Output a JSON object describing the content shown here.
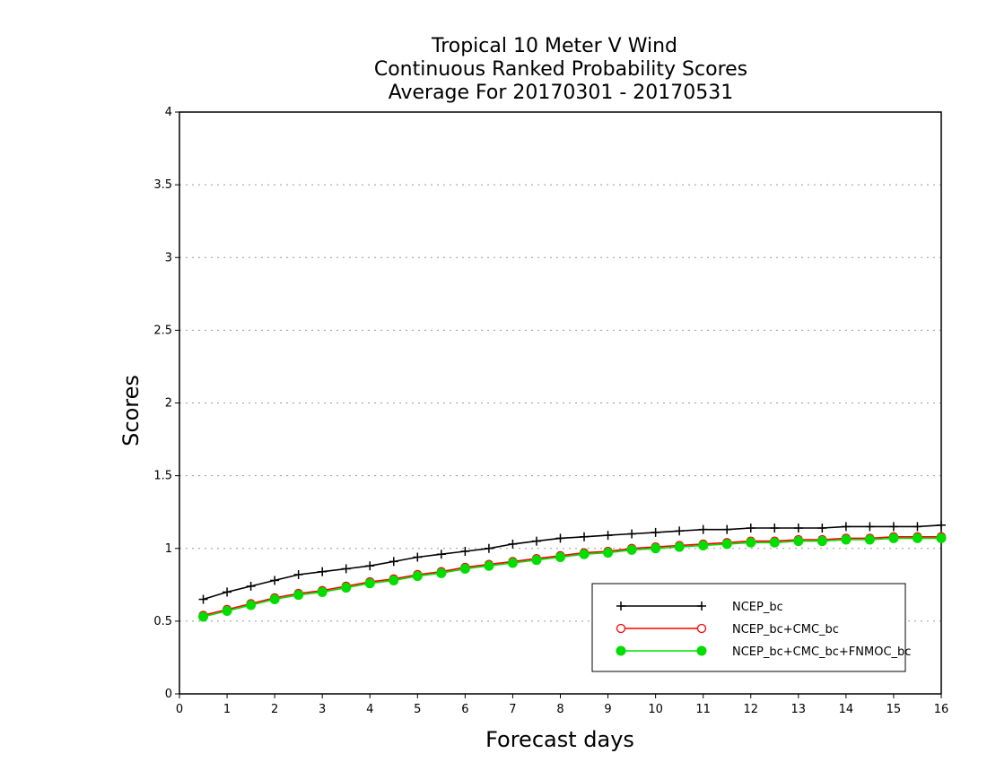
{
  "chart_data": {
    "type": "line",
    "title_lines": [
      "Tropical 10 Meter V Wind",
      "Continuous Ranked Probability Scores",
      "Average For 20170301 - 20170531"
    ],
    "xlabel": "Forecast days",
    "ylabel": "Scores",
    "xlim": [
      0,
      16
    ],
    "ylim": [
      0,
      4
    ],
    "x_ticks": [
      "0",
      "1",
      "2",
      "3",
      "4",
      "5",
      "6",
      "7",
      "8",
      "9",
      "10",
      "11",
      "12",
      "13",
      "14",
      "15",
      "16"
    ],
    "y_ticks": [
      "0",
      "0.5",
      "1",
      "1.5",
      "2",
      "2.5",
      "3",
      "3.5",
      "4"
    ],
    "grid": "horizontal-dotted",
    "legend_position": "bottom-right",
    "x": [
      0.5,
      1,
      1.5,
      2,
      2.5,
      3,
      3.5,
      4,
      4.5,
      5,
      5.5,
      6,
      6.5,
      7,
      7.5,
      8,
      8.5,
      9,
      9.5,
      10,
      10.5,
      11,
      11.5,
      12,
      12.5,
      13,
      13.5,
      14,
      14.5,
      15,
      15.5,
      16
    ],
    "series": [
      {
        "name": "NCEP_bc",
        "color": "#000000",
        "marker": "plus",
        "values": [
          0.65,
          0.7,
          0.74,
          0.78,
          0.82,
          0.84,
          0.86,
          0.88,
          0.91,
          0.94,
          0.96,
          0.98,
          1.0,
          1.03,
          1.05,
          1.07,
          1.08,
          1.09,
          1.1,
          1.11,
          1.12,
          1.13,
          1.13,
          1.14,
          1.14,
          1.14,
          1.14,
          1.15,
          1.15,
          1.15,
          1.15,
          1.16
        ]
      },
      {
        "name": "NCEP_bc+CMC_bc",
        "color": "#ff0000",
        "marker": "open-circle",
        "values": [
          0.54,
          0.58,
          0.62,
          0.66,
          0.69,
          0.71,
          0.74,
          0.77,
          0.79,
          0.82,
          0.84,
          0.87,
          0.89,
          0.91,
          0.93,
          0.95,
          0.97,
          0.98,
          1.0,
          1.01,
          1.02,
          1.03,
          1.04,
          1.05,
          1.05,
          1.06,
          1.06,
          1.07,
          1.07,
          1.08,
          1.08,
          1.08
        ]
      },
      {
        "name": "NCEP_bc+CMC_bc+FNMOC_bc",
        "color": "#00dd00",
        "marker": "filled-circle",
        "values": [
          0.53,
          0.57,
          0.61,
          0.65,
          0.68,
          0.7,
          0.73,
          0.76,
          0.78,
          0.81,
          0.83,
          0.86,
          0.88,
          0.9,
          0.92,
          0.94,
          0.96,
          0.97,
          0.99,
          1.0,
          1.01,
          1.02,
          1.03,
          1.04,
          1.04,
          1.05,
          1.05,
          1.06,
          1.06,
          1.07,
          1.07,
          1.07
        ]
      }
    ]
  }
}
